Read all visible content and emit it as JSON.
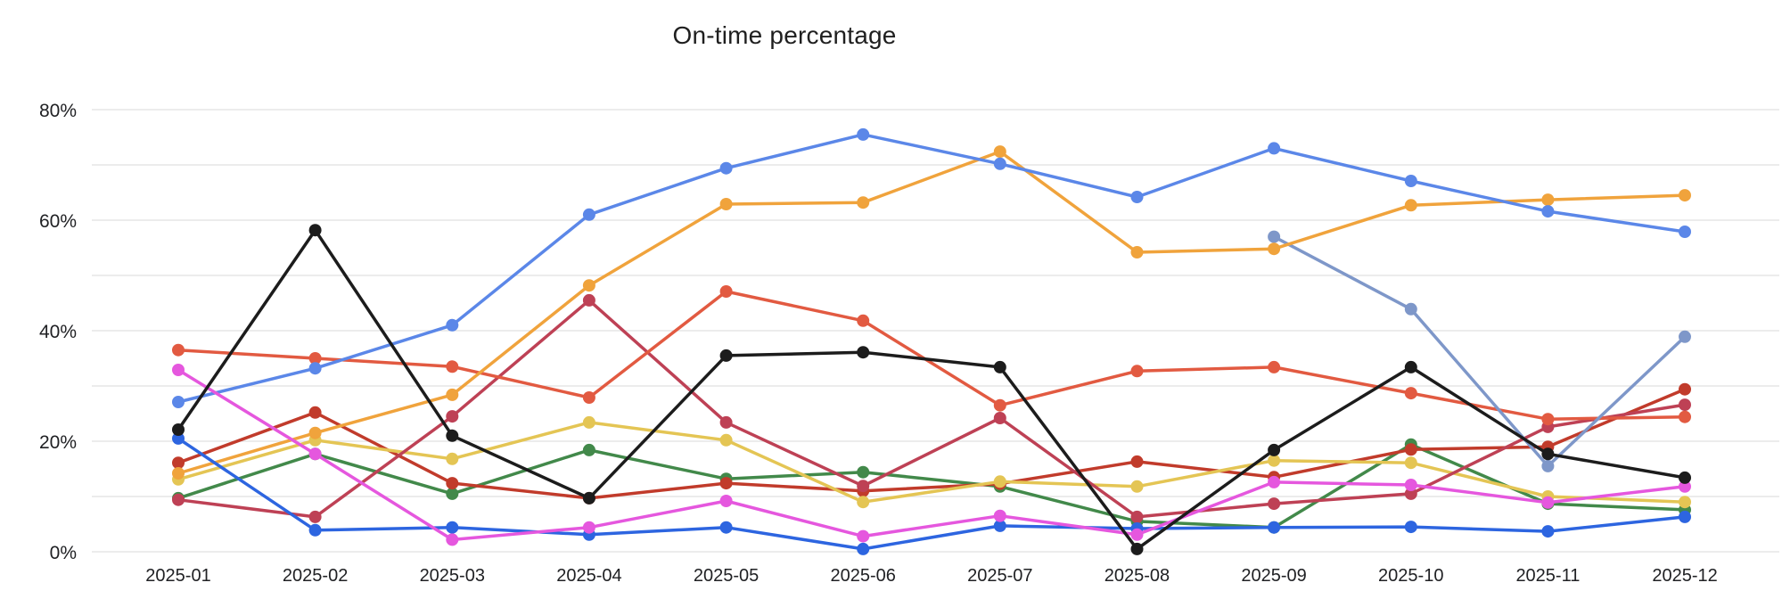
{
  "chart_data": {
    "type": "line",
    "title": "On-time percentage",
    "x": [
      "2025-01",
      "2025-02",
      "2025-03",
      "2025-04",
      "2025-05",
      "2025-06",
      "2025-07",
      "2025-08",
      "2025-09",
      "2025-10",
      "2025-11",
      "2025-12"
    ],
    "ylim": [
      0,
      80
    ],
    "yticks": [
      0,
      20,
      40,
      60,
      80
    ],
    "ytick_labels": [
      "0%",
      "20%",
      "40%",
      "60%",
      "80%"
    ],
    "grid": "horizontal lines every 10%",
    "legend": "none",
    "grid_color": "#e0e0e0",
    "axis_text_color": "#202124",
    "series": [
      {
        "name": "green",
        "color": "#42894A",
        "values": [
          9.7,
          17.7,
          10.5,
          18.4,
          13.2,
          14.4,
          11.8,
          5.5,
          4.4,
          19.4,
          8.7,
          7.6
        ]
      },
      {
        "name": "dark-red",
        "color": "#C13B2B",
        "values": [
          16.1,
          25.2,
          12.4,
          9.7,
          12.4,
          11.0,
          12.3,
          16.3,
          13.5,
          18.5,
          19.0,
          29.4
        ]
      },
      {
        "name": "yellow",
        "color": "#E4C554",
        "values": [
          13.1,
          20.2,
          16.8,
          23.4,
          20.2,
          9.0,
          12.7,
          11.8,
          16.5,
          16.1,
          10.0,
          9.0
        ]
      },
      {
        "name": "crimson",
        "color": "#BE4155",
        "values": [
          9.4,
          6.3,
          24.5,
          45.5,
          23.4,
          11.9,
          24.2,
          6.3,
          8.7,
          10.5,
          22.6,
          26.6
        ]
      },
      {
        "name": "red-orange",
        "color": "#E25A41",
        "values": [
          36.5,
          35.0,
          33.5,
          27.9,
          47.1,
          41.8,
          26.5,
          32.7,
          33.4,
          28.7,
          24.0,
          24.4
        ]
      },
      {
        "name": "slate-blue",
        "color": "#7E97C9",
        "values": [
          null,
          null,
          null,
          null,
          null,
          null,
          null,
          null,
          57.0,
          43.9,
          15.5,
          38.9
        ]
      },
      {
        "name": "orange",
        "color": "#F0A33C",
        "values": [
          14.2,
          21.5,
          28.4,
          48.2,
          62.9,
          63.2,
          72.4,
          54.2,
          54.8,
          62.7,
          63.7,
          64.5
        ]
      },
      {
        "name": "blue",
        "color": "#5B87E8",
        "values": [
          27.1,
          33.2,
          41.0,
          61.0,
          69.4,
          75.5,
          70.2,
          64.2,
          73.0,
          67.1,
          61.6,
          57.9
        ]
      },
      {
        "name": "dark-blue",
        "color": "#2D65E0",
        "values": [
          20.5,
          3.9,
          4.4,
          3.1,
          4.4,
          0.5,
          4.7,
          4.2,
          4.4,
          4.5,
          3.7,
          6.3
        ]
      },
      {
        "name": "magenta",
        "color": "#E557DE",
        "values": [
          32.9,
          17.7,
          2.2,
          4.4,
          9.2,
          2.8,
          6.5,
          3.1,
          12.6,
          12.1,
          8.9,
          11.8
        ]
      },
      {
        "name": "black",
        "color": "#1C1C1C",
        "values": [
          22.1,
          58.2,
          21.0,
          9.7,
          35.5,
          36.1,
          33.4,
          0.5,
          18.4,
          33.4,
          17.7,
          13.4
        ]
      }
    ]
  }
}
